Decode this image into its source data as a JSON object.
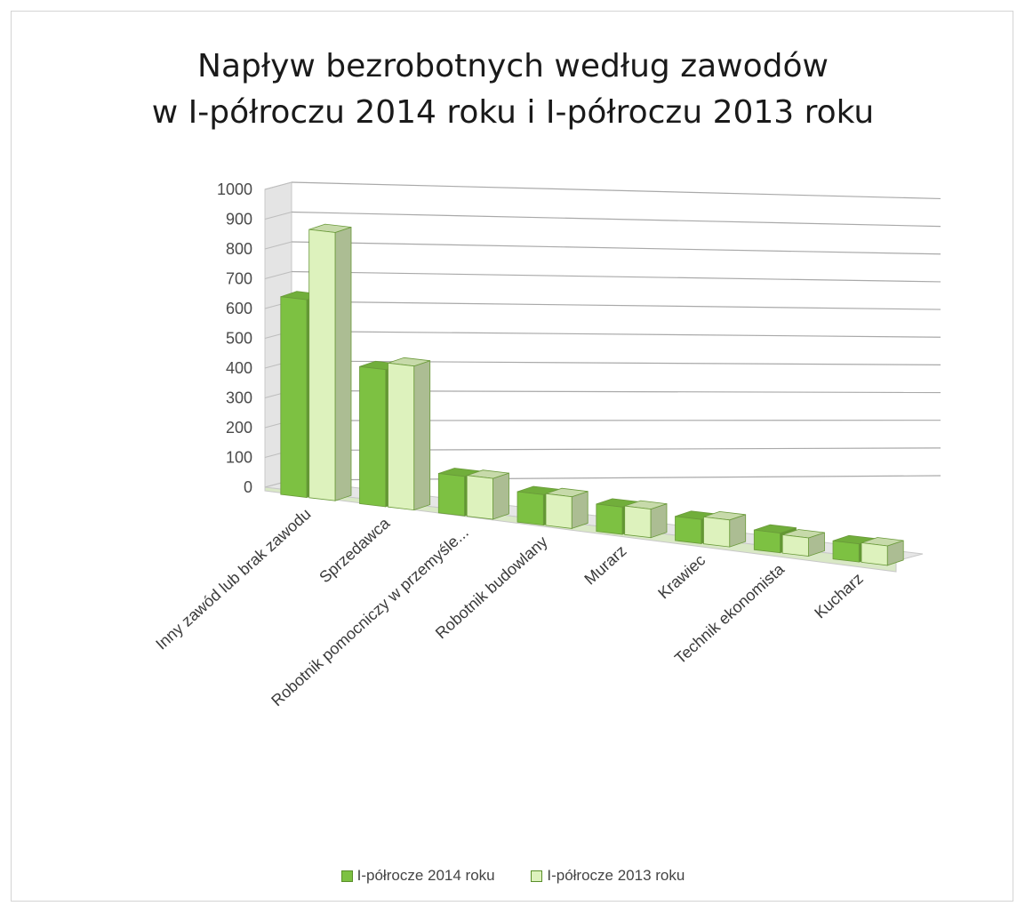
{
  "chart_data": {
    "type": "bar",
    "title_lines": [
      "Napływ bezrobotnych według zawodów",
      "w I-półroczu 2014 roku i I-półroczu 2013 roku"
    ],
    "categories": [
      "Inny zawód lub brak zawodu",
      "Sprzedawca",
      "Robotnik pomocniczy w przemyśle...",
      "Robotnik budowlany",
      "Murarz",
      "Krawiec",
      "Technik ekonomista",
      "Kucharz"
    ],
    "series": [
      {
        "name": "I-półrocze 2014 roku",
        "values": [
          665,
          465,
          135,
          105,
          95,
          85,
          70,
          65
        ],
        "color": "#7dc142"
      },
      {
        "name": "I-półrocze 2013 roku",
        "values": [
          905,
          490,
          140,
          110,
          100,
          95,
          65,
          70
        ],
        "color": "#ddf2bd"
      }
    ],
    "yticks": [
      "1000",
      "900",
      "800",
      "700",
      "600",
      "500",
      "400",
      "300",
      "200",
      "100",
      "0"
    ],
    "ylim": [
      0,
      1000
    ],
    "legend_position": "bottom",
    "grid": true
  }
}
